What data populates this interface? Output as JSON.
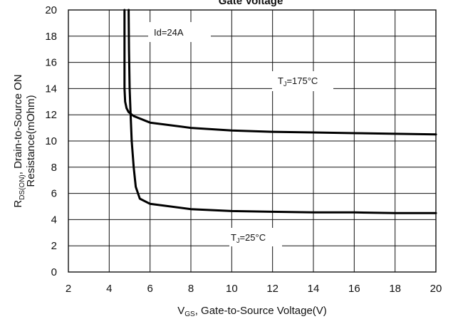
{
  "chart_data": {
    "type": "line",
    "title": "Gate Voltage",
    "xlabel": {
      "main": "V",
      "sub": "GS",
      "rest": ", Gate-to-Source Voltage(V)"
    },
    "ylabel": {
      "line1_main": "R",
      "line1_sub": "DS(ON)",
      "line1_rest": ", Drain-to-Source ON",
      "line2": "Resistance(mOhm)"
    },
    "xlim": [
      2,
      20
    ],
    "ylim": [
      0,
      20
    ],
    "xticks": [
      2,
      4,
      6,
      8,
      10,
      12,
      14,
      16,
      18,
      20
    ],
    "yticks": [
      0,
      2,
      4,
      6,
      8,
      10,
      12,
      14,
      16,
      18,
      20
    ],
    "grid": true,
    "annotations": [
      {
        "text": "Id=24A",
        "x": 5.6,
        "y": 18.6
      },
      {
        "text": "T",
        "sub": "J",
        "rest": "=175°C",
        "x": 12.2,
        "y": 14.4
      },
      {
        "text": "T",
        "sub": "J",
        "rest": "=25°C",
        "x": 11.0,
        "y": 2.6
      }
    ],
    "series": [
      {
        "name": "TJ=175°C",
        "x": [
          4.75,
          4.75,
          4.75,
          4.78,
          4.85,
          4.95,
          5.2,
          6,
          8,
          10,
          12,
          14,
          16,
          18,
          20
        ],
        "y": [
          20,
          17,
          14,
          13,
          12.5,
          12.2,
          11.9,
          11.4,
          11.0,
          10.8,
          10.7,
          10.65,
          10.6,
          10.55,
          10.5
        ]
      },
      {
        "name": "TJ=25°C",
        "x": [
          4.95,
          4.97,
          5.0,
          5.05,
          5.1,
          5.2,
          5.3,
          5.5,
          6,
          8,
          10,
          12,
          14,
          16,
          18,
          20
        ],
        "y": [
          20,
          17,
          14,
          12,
          10,
          8,
          6.5,
          5.6,
          5.2,
          4.8,
          4.65,
          4.6,
          4.55,
          4.55,
          4.5,
          4.5
        ]
      }
    ]
  }
}
